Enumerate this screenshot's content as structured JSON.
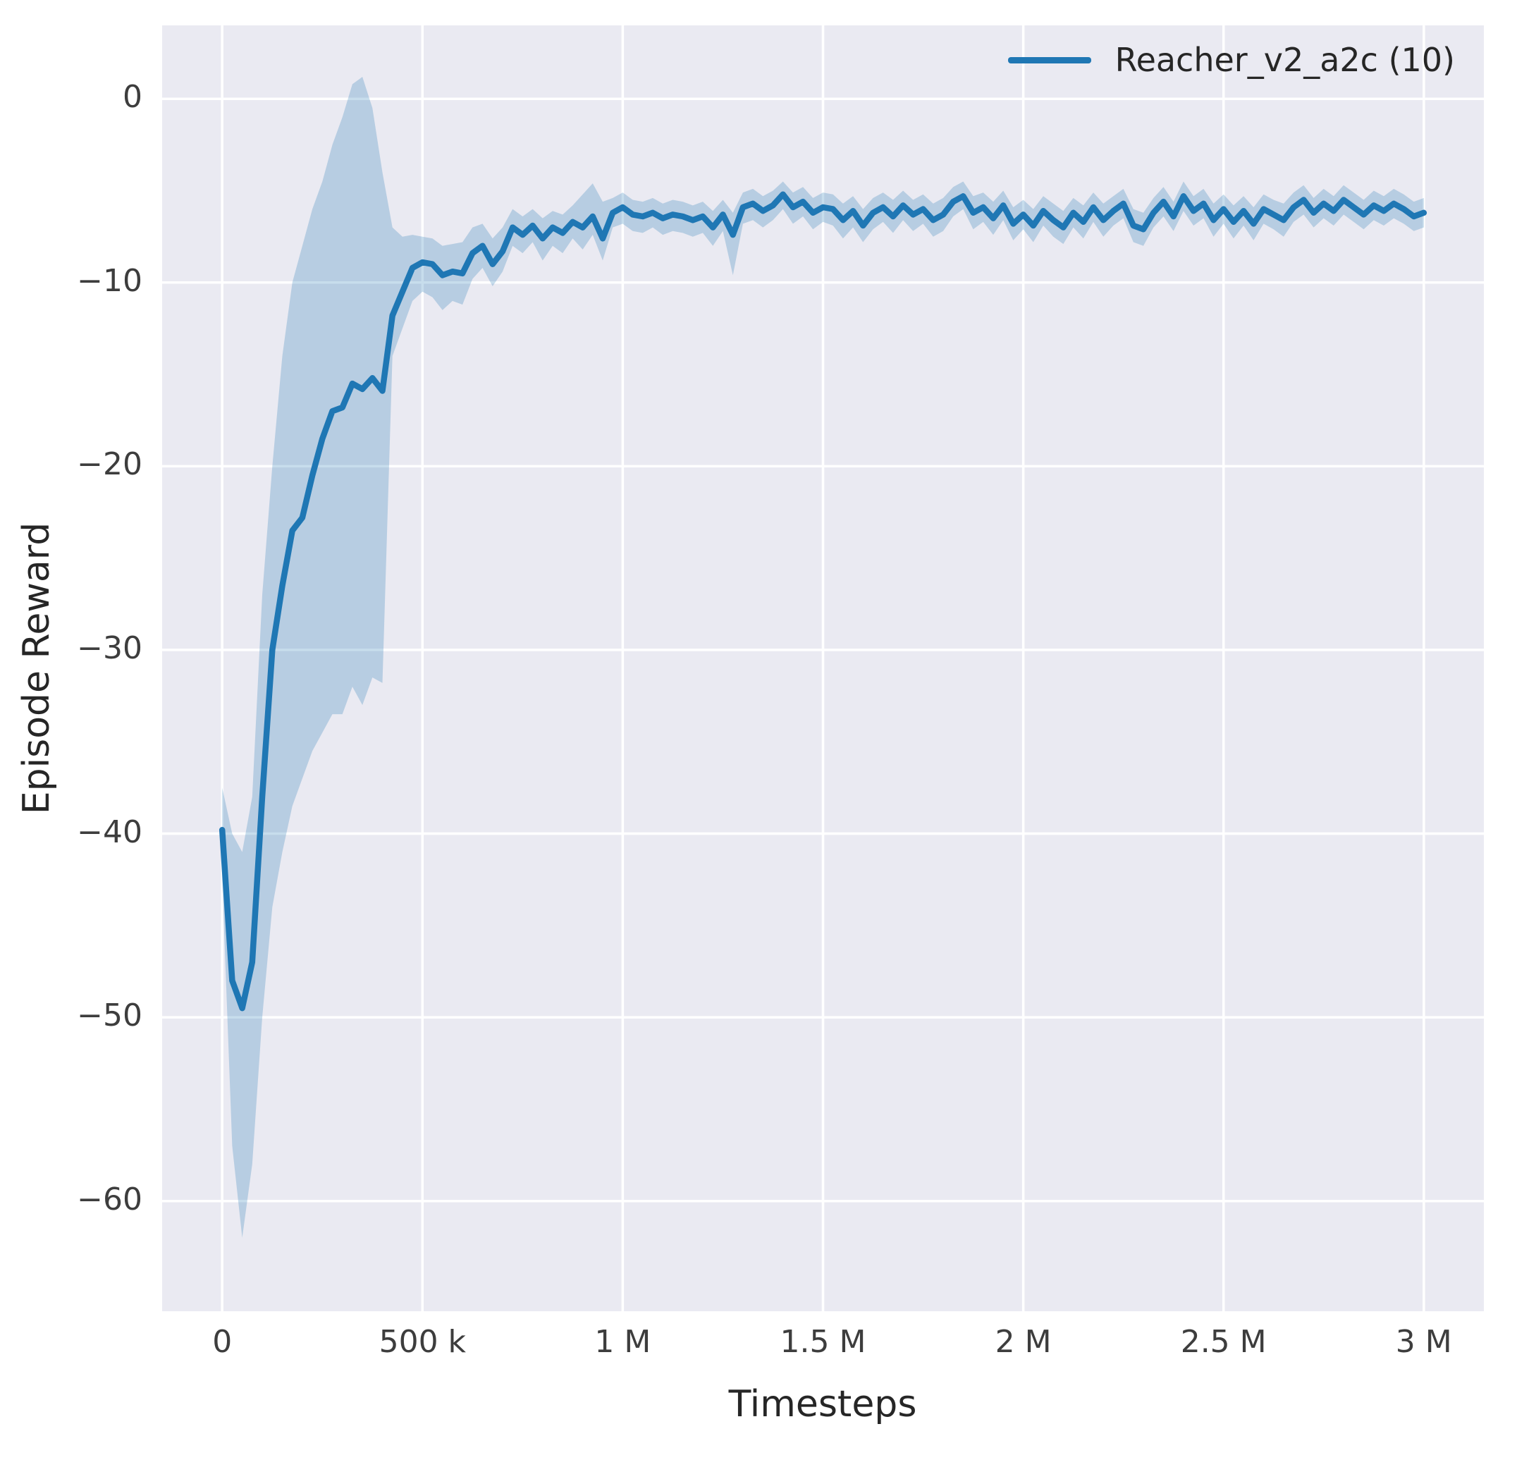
{
  "style": {
    "figure_bg": "#ffffff",
    "plot_bg": "#eaeaf2",
    "grid_color": "#ffffff",
    "tick_color": "#3d3d3d",
    "label_color": "#262626",
    "accent": "#1f77b4"
  },
  "chart_data": {
    "type": "line",
    "title": "",
    "xlabel": "Timesteps",
    "ylabel": "Episode Reward",
    "grid": true,
    "legend_position": "upper right",
    "xlim": [
      -150000,
      3150000
    ],
    "ylim": [
      -66,
      4
    ],
    "x_ticks": {
      "values": [
        0,
        500000,
        1000000,
        1500000,
        2000000,
        2500000,
        3000000
      ],
      "labels": [
        "0",
        "500 k",
        "1 M",
        "1.5 M",
        "2 M",
        "2.5 M",
        "3 M"
      ]
    },
    "y_ticks": {
      "values": [
        0,
        -10,
        -20,
        -30,
        -40,
        -50,
        -60
      ],
      "labels": [
        "0",
        "−10",
        "−20",
        "−30",
        "−40",
        "−50",
        "−60"
      ]
    },
    "series": [
      {
        "name": "Reacher_v2_a2c (10)",
        "color": "#1f77b4",
        "band_opacity": 0.25,
        "x_unit": "timesteps (thousands)",
        "x_k": [
          0,
          25,
          50,
          75,
          100,
          125,
          150,
          175,
          200,
          225,
          250,
          275,
          300,
          325,
          350,
          375,
          400,
          425,
          450,
          475,
          500,
          525,
          550,
          575,
          600,
          625,
          650,
          675,
          700,
          725,
          750,
          775,
          800,
          825,
          850,
          875,
          900,
          925,
          950,
          975,
          1000,
          1025,
          1050,
          1075,
          1100,
          1125,
          1150,
          1175,
          1200,
          1225,
          1250,
          1275,
          1300,
          1325,
          1350,
          1375,
          1400,
          1425,
          1450,
          1475,
          1500,
          1525,
          1550,
          1575,
          1600,
          1625,
          1650,
          1675,
          1700,
          1725,
          1750,
          1775,
          1800,
          1825,
          1850,
          1875,
          1900,
          1925,
          1950,
          1975,
          2000,
          2025,
          2050,
          2075,
          2100,
          2125,
          2150,
          2175,
          2200,
          2225,
          2250,
          2275,
          2300,
          2325,
          2350,
          2375,
          2400,
          2425,
          2450,
          2475,
          2500,
          2525,
          2550,
          2575,
          2600,
          2625,
          2650,
          2675,
          2700,
          2725,
          2750,
          2775,
          2800,
          2825,
          2850,
          2875,
          2900,
          2925,
          2950,
          2975,
          3000
        ],
        "mean": [
          -39.8,
          -48,
          -49.5,
          -47,
          -38,
          -30,
          -26.5,
          -23.5,
          -22.8,
          -20.5,
          -18.5,
          -17,
          -16.8,
          -15.5,
          -15.8,
          -15.2,
          -15.9,
          -11.8,
          -10.5,
          -9.2,
          -8.9,
          -9,
          -9.6,
          -9.4,
          -9.5,
          -8.4,
          -8,
          -9,
          -8.3,
          -7,
          -7.4,
          -6.9,
          -7.6,
          -7,
          -7.3,
          -6.7,
          -7,
          -6.4,
          -7.6,
          -6.2,
          -5.9,
          -6.3,
          -6.4,
          -6.2,
          -6.5,
          -6.3,
          -6.4,
          -6.6,
          -6.4,
          -7,
          -6.3,
          -7.4,
          -5.9,
          -5.7,
          -6.1,
          -5.8,
          -5.2,
          -5.9,
          -5.6,
          -6.2,
          -5.9,
          -6,
          -6.6,
          -6.1,
          -6.9,
          -6.2,
          -5.9,
          -6.4,
          -5.8,
          -6.3,
          -6,
          -6.6,
          -6.3,
          -5.6,
          -5.3,
          -6.2,
          -5.9,
          -6.5,
          -5.8,
          -6.8,
          -6.3,
          -6.9,
          -6.1,
          -6.6,
          -7,
          -6.2,
          -6.7,
          -5.9,
          -6.6,
          -6.1,
          -5.7,
          -6.9,
          -7.1,
          -6.2,
          -5.6,
          -6.4,
          -5.3,
          -6.1,
          -5.7,
          -6.6,
          -6,
          -6.7,
          -6.1,
          -6.8,
          -6,
          -6.3,
          -6.6,
          -5.9,
          -5.5,
          -6.2,
          -5.7,
          -6.1,
          -5.5,
          -5.9,
          -6.3,
          -5.8,
          -6.1,
          -5.7,
          -6,
          -6.4,
          -6.2
        ],
        "band_lo": [
          -42.5,
          -57,
          -62,
          -58,
          -50,
          -44,
          -41,
          -38.5,
          -37,
          -35.5,
          -34.5,
          -33.5,
          -33.5,
          -32,
          -33,
          -31.5,
          -31.8,
          -14,
          -12.5,
          -11,
          -10.5,
          -10.8,
          -11.5,
          -11,
          -11.2,
          -9.8,
          -9.2,
          -10.2,
          -9.4,
          -8,
          -8.4,
          -7.8,
          -8.8,
          -8,
          -8.4,
          -7.6,
          -8.2,
          -7.4,
          -8.8,
          -7,
          -6.8,
          -7.2,
          -7.3,
          -7,
          -7.4,
          -7.2,
          -7.3,
          -7.5,
          -7.3,
          -8,
          -7.2,
          -9.6,
          -6.8,
          -6.6,
          -7,
          -6.6,
          -6,
          -6.8,
          -6.4,
          -7.1,
          -6.7,
          -6.9,
          -7.6,
          -7,
          -7.8,
          -7.1,
          -6.7,
          -7.3,
          -6.6,
          -7.2,
          -6.8,
          -7.5,
          -7.2,
          -6.4,
          -6,
          -7.1,
          -6.7,
          -7.4,
          -6.6,
          -7.7,
          -7.1,
          -7.8,
          -6.9,
          -7.5,
          -7.9,
          -7,
          -7.6,
          -6.7,
          -7.5,
          -6.9,
          -6.5,
          -7.8,
          -8,
          -7,
          -6.4,
          -7.2,
          -6.1,
          -6.9,
          -6.5,
          -7.5,
          -6.8,
          -7.6,
          -6.9,
          -7.7,
          -6.8,
          -7.1,
          -7.5,
          -6.7,
          -6.3,
          -7,
          -6.5,
          -6.9,
          -6.3,
          -6.7,
          -7.1,
          -6.6,
          -6.9,
          -6.5,
          -6.8,
          -7.2,
          -7
        ],
        "band_hi": [
          -37.5,
          -40,
          -41,
          -38,
          -27,
          -20,
          -14,
          -10,
          -8,
          -6,
          -4.5,
          -2.5,
          -1,
          0.8,
          1.2,
          -0.5,
          -4,
          -7,
          -7.5,
          -7.4,
          -7.5,
          -7.6,
          -8,
          -7.9,
          -7.8,
          -7,
          -6.8,
          -7.6,
          -7,
          -6,
          -6.4,
          -6,
          -6.5,
          -6.1,
          -6.3,
          -5.8,
          -5.2,
          -4.6,
          -5.6,
          -5.4,
          -5.1,
          -5.5,
          -5.6,
          -5.4,
          -5.7,
          -5.5,
          -5.6,
          -5.8,
          -5.6,
          -6.1,
          -5.5,
          -6.2,
          -5.1,
          -4.9,
          -5.3,
          -5,
          -4.5,
          -5.1,
          -4.8,
          -5.4,
          -5.1,
          -5.2,
          -5.7,
          -5.3,
          -6,
          -5.4,
          -5.1,
          -5.5,
          -5,
          -5.5,
          -5.2,
          -5.7,
          -5.4,
          -4.8,
          -4.5,
          -5.3,
          -5.1,
          -5.6,
          -5,
          -5.9,
          -5.5,
          -6,
          -5.3,
          -5.7,
          -6.1,
          -5.4,
          -5.8,
          -5.1,
          -5.7,
          -5.3,
          -4.9,
          -6,
          -6.2,
          -5.4,
          -4.8,
          -5.6,
          -4.5,
          -5.3,
          -4.9,
          -5.7,
          -5.2,
          -5.8,
          -5.3,
          -5.9,
          -5.2,
          -5.5,
          -5.7,
          -5.1,
          -4.7,
          -5.4,
          -4.9,
          -5.3,
          -4.7,
          -5.1,
          -5.5,
          -5,
          -5.3,
          -4.9,
          -5.2,
          -5.6,
          -5.4
        ]
      }
    ]
  }
}
